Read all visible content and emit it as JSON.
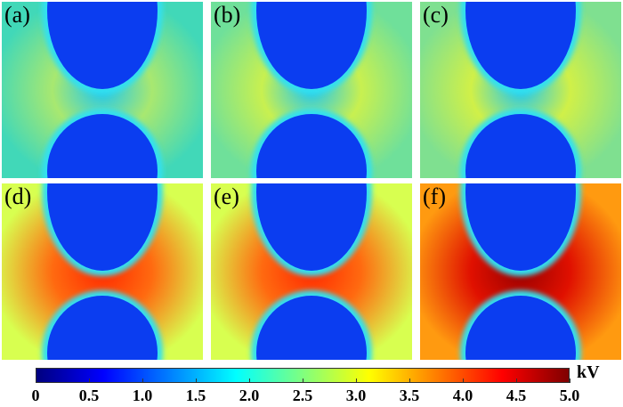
{
  "panels": [
    {
      "label": "(a)",
      "scheme": "low"
    },
    {
      "label": "(b)",
      "scheme": "low2"
    },
    {
      "label": "(c)",
      "scheme": "low3"
    },
    {
      "label": "(d)",
      "scheme": "high"
    },
    {
      "label": "(e)",
      "scheme": "high"
    },
    {
      "label": "(f)",
      "scheme": "max"
    }
  ],
  "colorbar": {
    "unit": "kV",
    "ticks": [
      "0",
      "0.5",
      "1.0",
      "1.5",
      "2.0",
      "2.5",
      "3.0",
      "3.5",
      "4.0",
      "4.5",
      "5.0"
    ],
    "colors": [
      "#00007f",
      "#0000ff",
      "#007fff",
      "#00ffff",
      "#7fff7f",
      "#ffff00",
      "#ff7f00",
      "#ff0000",
      "#7f0000"
    ]
  },
  "schemes": {
    "low": {
      "bg": "#41d8b8",
      "mid": "#a8e870",
      "inner": "#1ec8f0"
    },
    "low2": {
      "bg": "#6fe09a",
      "mid": "#c8f050",
      "inner": "#20c8f0"
    },
    "low3": {
      "bg": "#7fe090",
      "mid": "#d0f048",
      "inner": "#20c8f0"
    },
    "high": {
      "bg": "#d8ff50",
      "mid": "#ff6a10",
      "inner": "#ff2a00"
    },
    "max": {
      "bg": "#ff9a10",
      "mid": "#e01000",
      "inner": "#9a0000"
    }
  }
}
